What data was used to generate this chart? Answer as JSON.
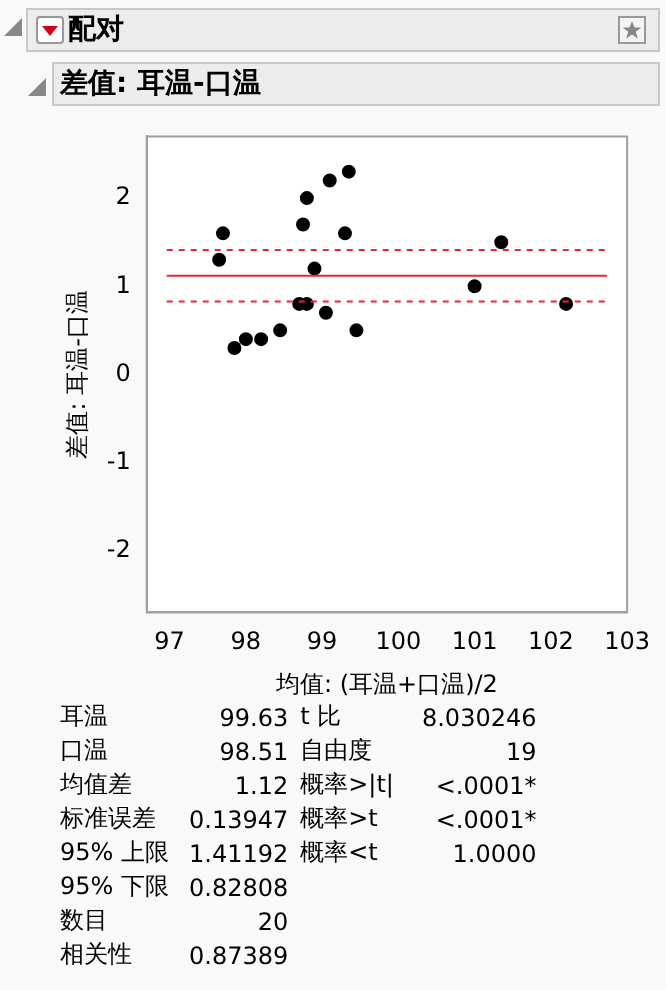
{
  "chart_data": {
    "type": "scatter",
    "title": "配对",
    "subtitle": "差值: 耳温-口温",
    "xlabel": "均值: (耳温+口温)/2",
    "ylabel": "差值: 耳温-口温",
    "x": [
      97.65,
      97.7,
      97.85,
      98.0,
      98.2,
      98.45,
      98.7,
      98.8,
      98.75,
      98.8,
      98.9,
      99.05,
      99.1,
      99.3,
      99.35,
      99.45,
      101.0,
      101.35,
      102.2
    ],
    "values": [
      1.3,
      1.6,
      0.3,
      0.4,
      0.4,
      0.5,
      0.8,
      0.8,
      1.7,
      2.0,
      1.2,
      0.7,
      2.2,
      1.6,
      2.3,
      0.5,
      1.0,
      1.5,
      0.8
    ],
    "color": "#000000",
    "marker": "circle",
    "grid": false,
    "legend": false,
    "xlim": [
      96.7,
      103
    ],
    "xticks": [
      97,
      98,
      99,
      100,
      101,
      102,
      103
    ],
    "ylim": [
      -2.7,
      2.7
    ],
    "yticks": [
      -2,
      -1,
      0,
      1,
      2
    ],
    "ref_lines": [
      {
        "axis": "y",
        "value": 1.12,
        "color": "#e8253a",
        "line_style": "solid"
      },
      {
        "axis": "y",
        "value": 1.41192,
        "color": "#e8253a",
        "line_style": "dotted"
      },
      {
        "axis": "y",
        "value": 0.82808,
        "color": "#e8253a",
        "line_style": "dotted"
      }
    ],
    "annotations": [
      "耳温",
      "99.63",
      "口温",
      "98.51",
      "均值差",
      "1.12",
      "标准误差",
      "0.13947",
      "95% 上限",
      "1.41192",
      "95% 下限",
      "0.82808",
      "数目",
      "20",
      "相关性",
      "0.87389",
      "t 比",
      "8.030246",
      "自由度",
      "19",
      "概率>|t|",
      "<.0001*",
      "概率>t",
      "<.0001*",
      "概率<t",
      "1.0000"
    ]
  }
}
